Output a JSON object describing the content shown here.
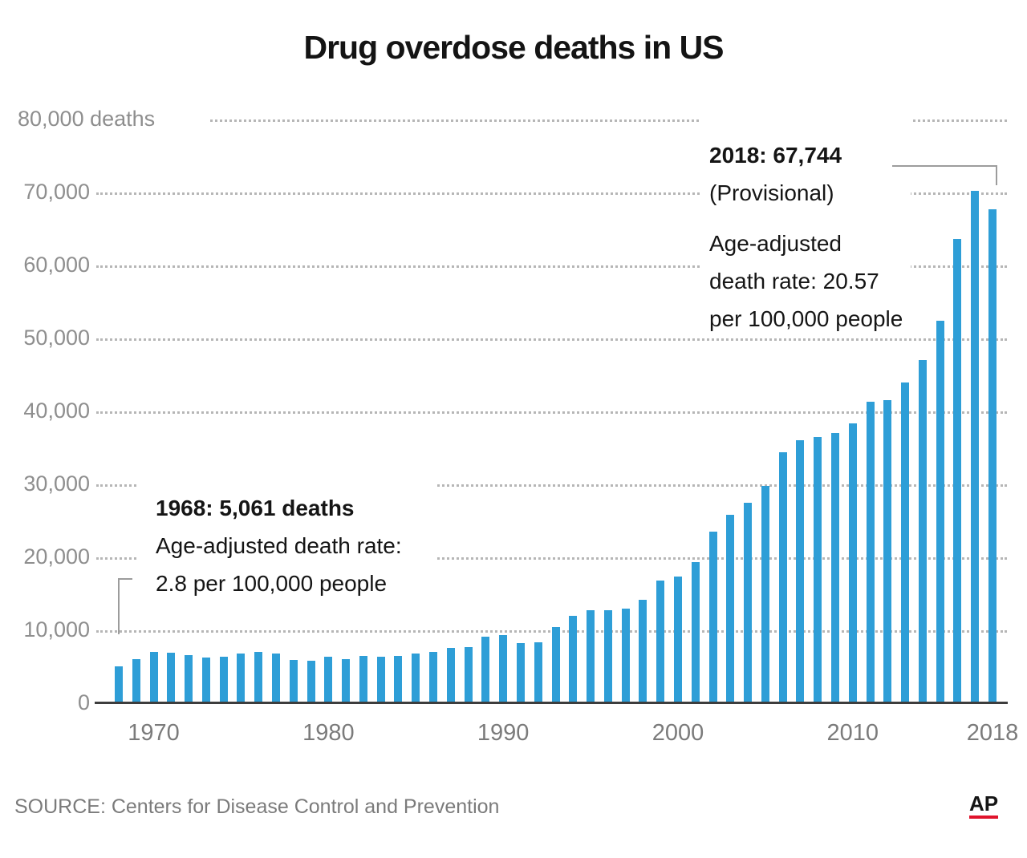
{
  "title": "Drug overdose deaths in US",
  "source": "SOURCE: Centers for Disease Control and Prevention",
  "logo_text": "AP",
  "annotations": {
    "start": {
      "headline": "1968: 5,061 deaths",
      "line1": "Age-adjusted death rate:",
      "line2": "2.8 per 100,000 people"
    },
    "end": {
      "headline": "2018: 67,744",
      "subhead": "(Provisional)",
      "line1": "Age-adjusted",
      "line2": "death rate: 20.57",
      "line3": "per 100,000 people"
    }
  },
  "y_axis": {
    "ticks": [
      {
        "value": 80000,
        "label": "80,000 deaths",
        "align": "left"
      },
      {
        "value": 70000,
        "label": "70,000"
      },
      {
        "value": 60000,
        "label": "60,000"
      },
      {
        "value": 50000,
        "label": "50,000"
      },
      {
        "value": 40000,
        "label": "40,000"
      },
      {
        "value": 30000,
        "label": "30,000"
      },
      {
        "value": 20000,
        "label": "20,000"
      },
      {
        "value": 10000,
        "label": "10,000"
      },
      {
        "value": 0,
        "label": "0"
      }
    ]
  },
  "x_axis": {
    "ticks": [
      {
        "year": 1970,
        "label": "1970"
      },
      {
        "year": 1980,
        "label": "1980"
      },
      {
        "year": 1990,
        "label": "1990"
      },
      {
        "year": 2000,
        "label": "2000"
      },
      {
        "year": 2010,
        "label": "2010"
      },
      {
        "year": 2018,
        "label": "2018"
      }
    ]
  },
  "colors": {
    "bar": "#2E9ED7",
    "grid_dots": "#B6B6B6",
    "axis_line": "#3D3D3D",
    "axis_text": "#8E8E8E",
    "tick_text": "#7B7B7B",
    "title_text": "#141414",
    "annotation_text": "#151515",
    "callout_line": "#9C9C9C",
    "ap_red": "#E0132C"
  },
  "chart_data": {
    "type": "bar",
    "title": "Drug overdose deaths in US",
    "xlabel": "",
    "ylabel": "deaths",
    "ylim": [
      0,
      80000
    ],
    "ytick_interval": 10000,
    "grid": "horizontal dotted",
    "legend": "none",
    "x": [
      1968,
      1969,
      1970,
      1971,
      1972,
      1973,
      1974,
      1975,
      1976,
      1977,
      1978,
      1979,
      1980,
      1981,
      1982,
      1983,
      1984,
      1985,
      1986,
      1987,
      1988,
      1989,
      1990,
      1991,
      1992,
      1993,
      1994,
      1995,
      1996,
      1997,
      1998,
      1999,
      2000,
      2001,
      2002,
      2003,
      2004,
      2005,
      2006,
      2007,
      2008,
      2009,
      2010,
      2011,
      2012,
      2013,
      2014,
      2015,
      2016,
      2017,
      2018
    ],
    "values": [
      5061,
      6000,
      7000,
      6900,
      6600,
      6300,
      6400,
      6800,
      7000,
      6800,
      5900,
      5800,
      6400,
      6100,
      6500,
      6400,
      6500,
      6800,
      7000,
      7600,
      7700,
      9100,
      9300,
      8200,
      8400,
      10500,
      12000,
      12700,
      12800,
      13000,
      14200,
      16849,
      17415,
      19394,
      23518,
      25785,
      27424,
      29813,
      34425,
      36010,
      36450,
      37004,
      38329,
      41340,
      41502,
      43982,
      47055,
      52404,
      63632,
      70237,
      67744
    ],
    "annotated_points": [
      {
        "year": 1968,
        "value": 5061,
        "note": "Age-adjusted death rate: 2.8 per 100,000 people"
      },
      {
        "year": 2018,
        "value": 67744,
        "note": "(Provisional) Age-adjusted death rate: 20.57 per 100,000 people"
      }
    ]
  }
}
